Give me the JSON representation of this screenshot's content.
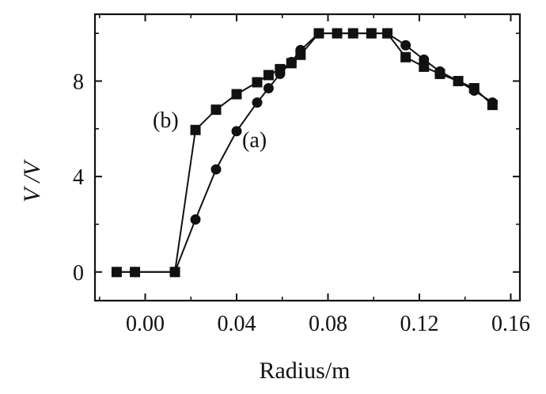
{
  "chart_data": {
    "type": "line",
    "title": "",
    "xlabel": "Radius/m",
    "ylabel": "V /V",
    "xlim": [
      -0.022,
      0.164
    ],
    "ylim": [
      -1.2,
      10.8
    ],
    "xticks": [
      0.0,
      0.04,
      0.08,
      0.12,
      0.16
    ],
    "xtick_labels": [
      "0.00",
      "0.04",
      "0.08",
      "0.12",
      "0.16"
    ],
    "yticks": [
      0,
      4,
      8
    ],
    "ytick_labels": [
      "0",
      "4",
      "8"
    ],
    "grid": false,
    "legend": "none",
    "line_color": "#111111",
    "series": [
      {
        "name": "(a)",
        "marker": "circle",
        "x": [
          -0.0125,
          -0.0045,
          0.013,
          0.022,
          0.031,
          0.04,
          0.049,
          0.054,
          0.059,
          0.064,
          0.068,
          0.076,
          0.084,
          0.091,
          0.099,
          0.106,
          0.114,
          0.122,
          0.129,
          0.137,
          0.144,
          0.152
        ],
        "y": [
          0,
          0,
          0,
          2.2,
          4.3,
          5.9,
          7.1,
          7.7,
          8.3,
          8.8,
          9.3,
          10,
          10,
          10,
          10,
          10,
          9.5,
          8.9,
          8.4,
          8.0,
          7.6,
          7.1
        ]
      },
      {
        "name": "(b)",
        "marker": "square",
        "x": [
          -0.0125,
          -0.0045,
          0.013,
          0.022,
          0.031,
          0.04,
          0.049,
          0.054,
          0.059,
          0.064,
          0.068,
          0.076,
          0.084,
          0.091,
          0.099,
          0.106,
          0.114,
          0.122,
          0.129,
          0.137,
          0.144,
          0.152
        ],
        "y": [
          0,
          0,
          0,
          5.95,
          6.8,
          7.45,
          7.95,
          8.25,
          8.5,
          8.75,
          9.1,
          10,
          10,
          10,
          10,
          10,
          9.0,
          8.6,
          8.3,
          8.0,
          7.7,
          7.0
        ]
      }
    ],
    "annotations": [
      {
        "text": "(b)",
        "series": "(b)"
      },
      {
        "text": "(a)",
        "series": "(a)"
      }
    ]
  }
}
